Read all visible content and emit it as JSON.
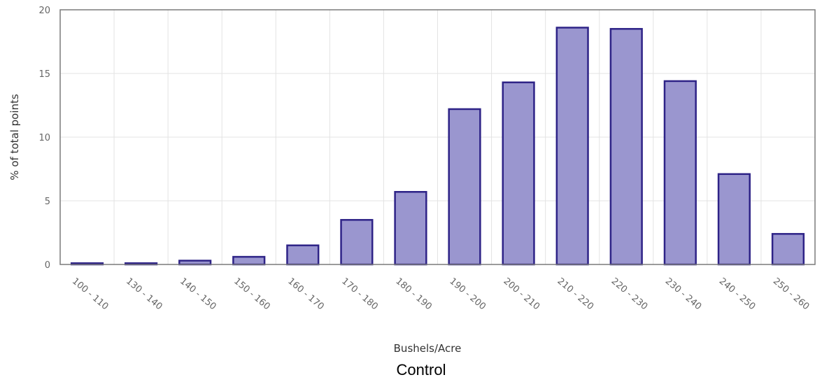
{
  "chart_data": {
    "type": "bar",
    "title": "Control",
    "xlabel": "Bushels/Acre",
    "ylabel": "% of total points",
    "categories": [
      "100 - 110",
      "130 - 140",
      "140 - 150",
      "150 - 160",
      "160 - 170",
      "170 - 180",
      "180 - 190",
      "190 - 200",
      "200 - 210",
      "210 - 220",
      "220 - 230",
      "230 - 240",
      "240 - 250",
      "250 - 260"
    ],
    "values": [
      0.1,
      0.1,
      0.3,
      0.6,
      1.5,
      3.5,
      5.7,
      12.2,
      14.3,
      18.6,
      18.5,
      14.4,
      7.1,
      2.4
    ],
    "ylim": [
      0,
      20
    ],
    "yticks": [
      "0",
      "5",
      "10",
      "15",
      "20"
    ],
    "grid": true,
    "bar_fill": "#9a96cf",
    "bar_stroke": "#2e2387"
  }
}
